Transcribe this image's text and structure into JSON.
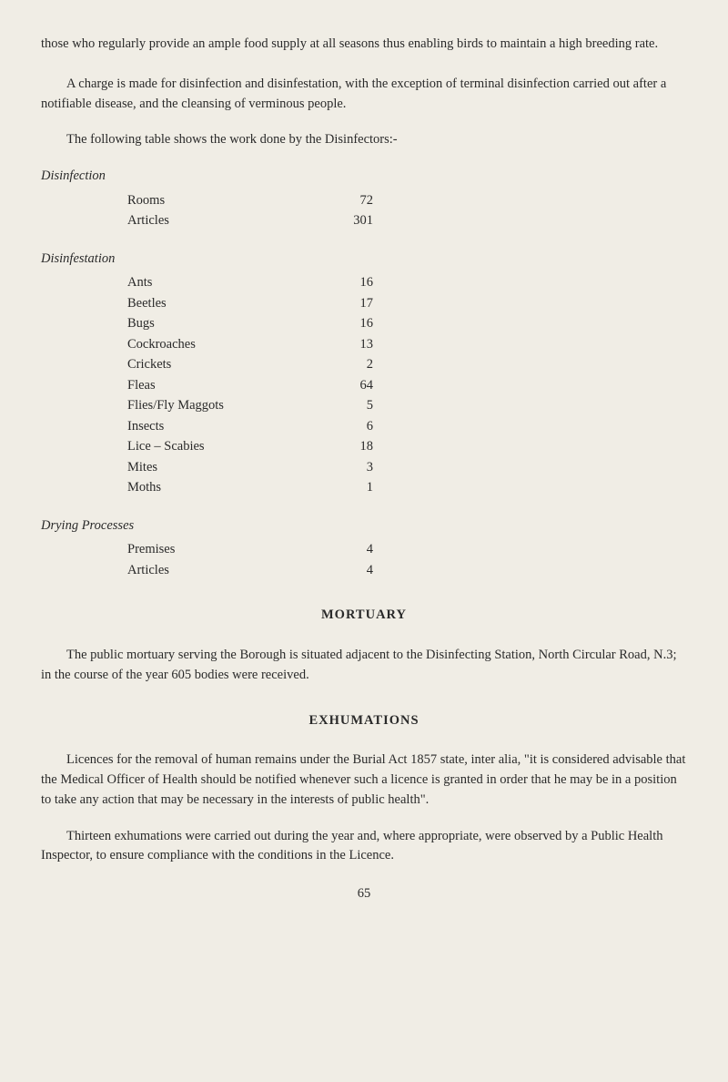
{
  "intro_para": "those who regularly provide an ample food supply at all seasons thus enabling birds to maintain a high breeding rate.",
  "charge_para": "A charge is made for disinfection and disinfestation, with the exception of terminal disinfection carried out after a notifiable disease, and the cleansing of verminous people.",
  "table_intro": "The following table shows the work done by the Disinfectors:-",
  "disinfection": {
    "heading": "Disinfection",
    "rows": [
      {
        "label": "Rooms",
        "value": "72"
      },
      {
        "label": "Articles",
        "value": "301"
      }
    ]
  },
  "disinfestation": {
    "heading": "Disinfestation",
    "rows": [
      {
        "label": "Ants",
        "value": "16"
      },
      {
        "label": "Beetles",
        "value": "17"
      },
      {
        "label": "Bugs",
        "value": "16"
      },
      {
        "label": "Cockroaches",
        "value": "13"
      },
      {
        "label": "Crickets",
        "value": "2"
      },
      {
        "label": "Fleas",
        "value": "64"
      },
      {
        "label": "Flies/Fly Maggots",
        "value": "5"
      },
      {
        "label": "Insects",
        "value": "6"
      },
      {
        "label": "Lice – Scabies",
        "value": "18"
      },
      {
        "label": "Mites",
        "value": "3"
      },
      {
        "label": "Moths",
        "value": "1"
      }
    ]
  },
  "drying": {
    "heading": "Drying Processes",
    "rows": [
      {
        "label": "Premises",
        "value": "4"
      },
      {
        "label": "Articles",
        "value": "4"
      }
    ]
  },
  "mortuary": {
    "heading": "MORTUARY",
    "para": "The public mortuary serving the Borough is situated adjacent to the Disinfecting Station, North Circular Road, N.3; in the course of the year 605 bodies were received."
  },
  "exhumations": {
    "heading": "EXHUMATIONS",
    "para1": "Licences for the removal of human remains under the Burial Act 1857 state, inter alia, \"it is considered advisable that the Medical Officer of Health should be notified whenever such a licence is granted in order that he may be in a position to take any action that may be necessary in the interests of public health\".",
    "para2": "Thirteen exhumations were carried out during the year and, where appropriate, were observed by a Public Health Inspector, to ensure compliance with the conditions in the Licence."
  },
  "page_number": "65"
}
